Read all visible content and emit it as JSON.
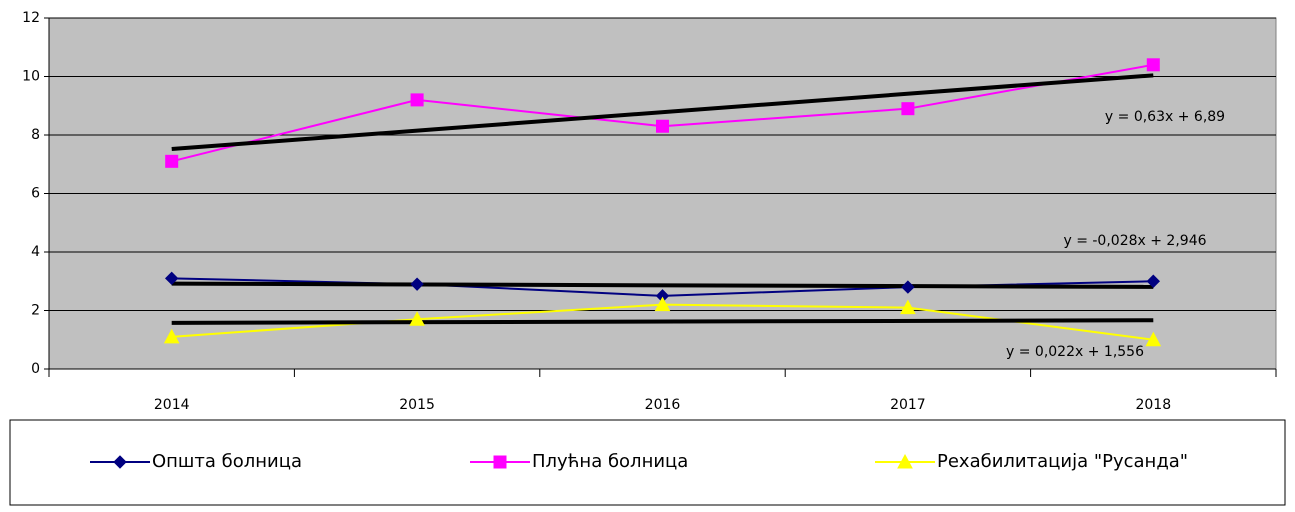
{
  "chart_data": {
    "type": "line",
    "categories": [
      "2014",
      "2015",
      "2016",
      "2017",
      "2018"
    ],
    "series": [
      {
        "name": "Општа болница",
        "color": "#000080",
        "marker": "diamond",
        "values": [
          3.1,
          2.9,
          2.5,
          2.8,
          3.0
        ],
        "trendline": {
          "slope": -0.028,
          "intercept": 2.946,
          "label": "y = -0,028x + 2,946"
        }
      },
      {
        "name": "Плућна болница",
        "color": "#ff00ff",
        "marker": "square",
        "values": [
          7.1,
          9.2,
          8.3,
          8.9,
          10.4
        ],
        "trendline": {
          "slope": 0.63,
          "intercept": 6.89,
          "label": "y = 0,63x + 6,89"
        }
      },
      {
        "name": "Рехабилитација \"Русанда\"",
        "color": "#ffff00",
        "marker": "triangle",
        "values": [
          1.1,
          1.7,
          2.2,
          2.1,
          1.0
        ],
        "trendline": {
          "slope": 0.022,
          "intercept": 1.556,
          "label": "y = 0,022x + 1,556"
        }
      }
    ],
    "ylim": [
      0,
      12
    ],
    "yticks": [
      0,
      2,
      4,
      6,
      8,
      10,
      12
    ],
    "grid": true,
    "legend": "bottom"
  }
}
